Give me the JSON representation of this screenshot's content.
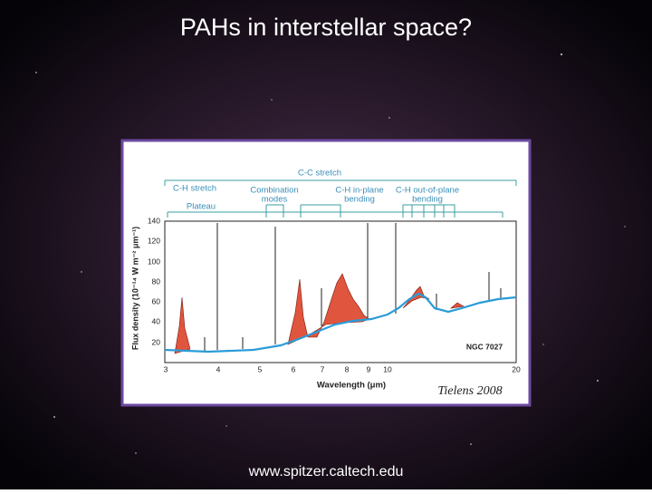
{
  "title": "PAHs in interstellar space?",
  "figure": {
    "bands": {
      "cc_stretch": "C-C stretch",
      "ch_stretch": "C-H stretch",
      "combination": [
        "Combination",
        "modes"
      ],
      "ch_in_plane": [
        "C-H in-plane",
        "bending"
      ],
      "ch_out_of_plane": [
        "C-H out-of-plane",
        "bending"
      ],
      "plateau": "Plateau"
    },
    "object": "NGC 7027",
    "x_label": "Wavelength (μm)",
    "y_label": "Flux density (10⁻¹⁴ W m⁻² μm⁻¹)",
    "x_ticks": [
      "3",
      "4",
      "5",
      "6",
      "7",
      "8",
      "9",
      "10",
      "20"
    ],
    "y_ticks": [
      "20",
      "40",
      "60",
      "80",
      "100",
      "120",
      "140"
    ]
  },
  "caption": "Tielens 2008",
  "footer": "www.spitzer.caltech.edu"
}
